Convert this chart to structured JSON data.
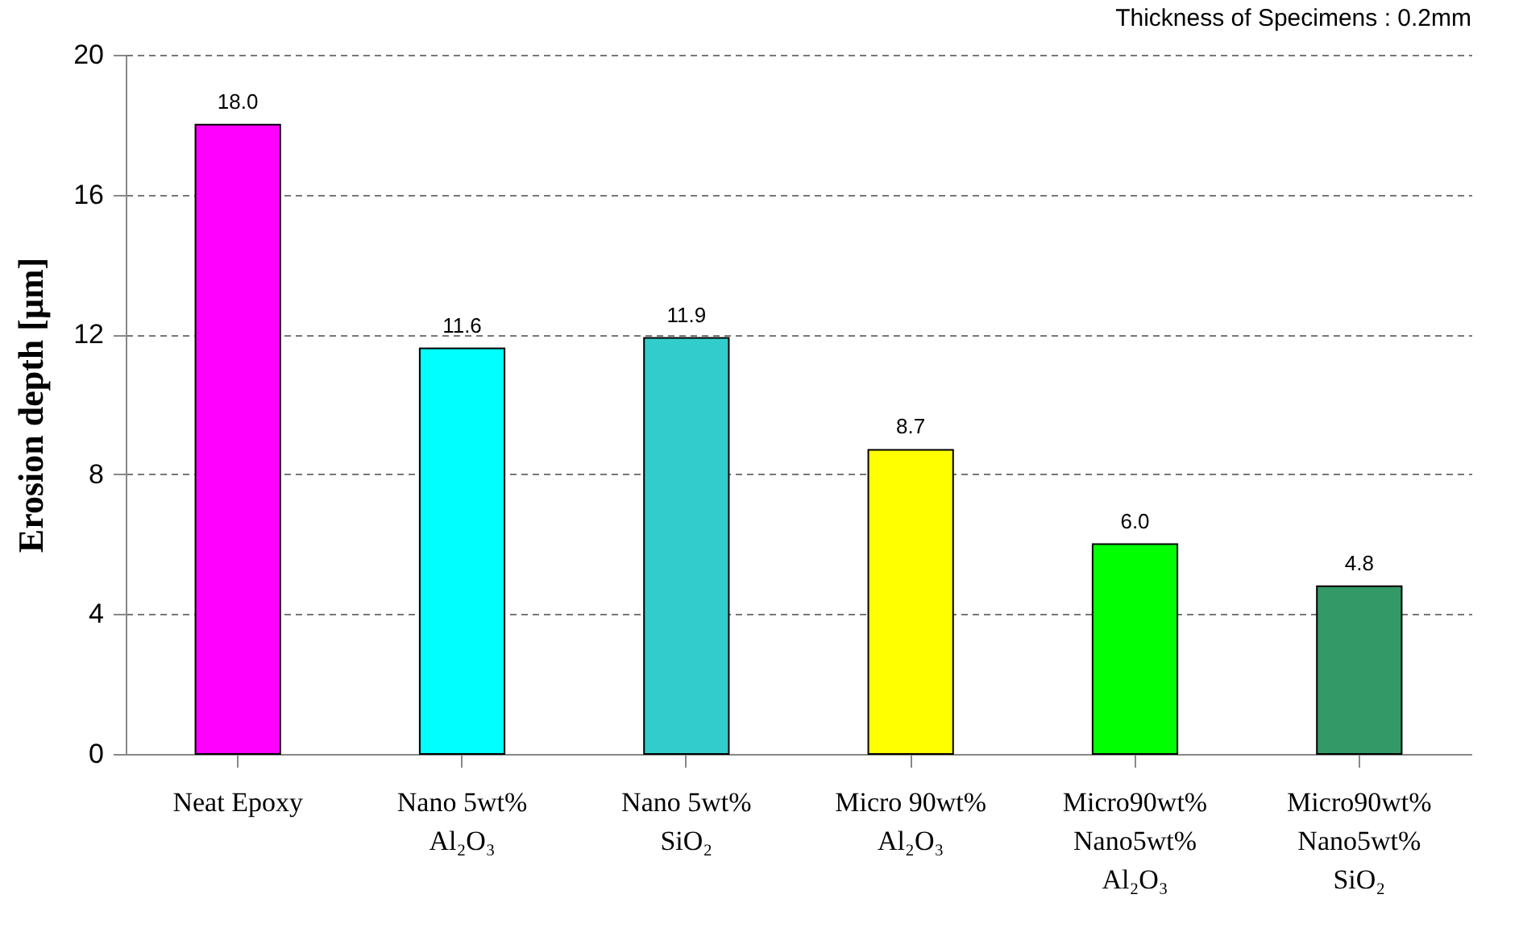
{
  "chart_data": {
    "type": "bar",
    "ylabel": "Erosion depth [μm]",
    "annotations": [
      "Thickness of Specimens : 0.2mm"
    ],
    "categories": [
      "Neat Epoxy",
      "Nano 5wt%\nAl₂O₃",
      "Nano 5wt%\nSiO₂",
      "Micro 90wt%\nAl₂O₃",
      "Micro90wt%\nNano5wt%\nAl₂O₃",
      "Micro90wt%\nNano5wt%\nSiO₂"
    ],
    "values": [
      18.0,
      11.6,
      11.9,
      8.7,
      6.0,
      4.8
    ],
    "value_labels": [
      "18.0",
      "11.6",
      "11.9",
      "8.7",
      "6.0",
      "4.8"
    ],
    "colors": [
      "#ff00ff",
      "#00ffff",
      "#33cccc",
      "#ffff00",
      "#00ff00",
      "#339966"
    ],
    "ylim": [
      0,
      20
    ],
    "yticks": [
      0,
      4,
      8,
      12,
      16,
      20
    ],
    "grid": "y"
  }
}
